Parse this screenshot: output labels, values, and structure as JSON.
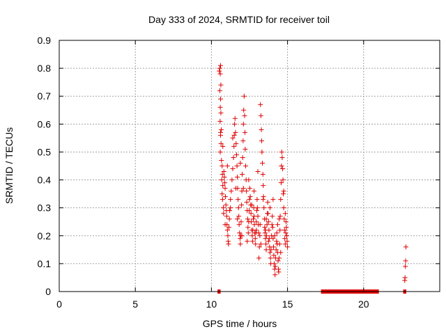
{
  "chart_data": {
    "type": "scatter",
    "title": "Day 333 of 2024, SRMTID for receiver toil",
    "xlabel": "GPS time / hours",
    "ylabel": "SRMTID / TECUs",
    "xlim": [
      0,
      25
    ],
    "ylim": [
      0,
      0.9
    ],
    "xticks": [
      0,
      5,
      10,
      15,
      20
    ],
    "yticks": [
      0,
      0.1,
      0.2,
      0.3,
      0.4,
      0.5,
      0.6,
      0.7,
      0.8,
      0.9
    ],
    "grid": true,
    "legend": "none",
    "marker": "+",
    "color": "#e00000",
    "series": [
      {
        "points": [
          [
            10.52,
            0.79
          ],
          [
            10.55,
            0.8
          ],
          [
            10.58,
            0.78
          ],
          [
            10.6,
            0.81
          ],
          [
            10.62,
            0.74
          ],
          [
            10.55,
            0.72
          ],
          [
            10.6,
            0.69
          ],
          [
            10.58,
            0.66
          ],
          [
            10.62,
            0.64
          ],
          [
            10.57,
            0.61
          ],
          [
            10.65,
            0.58
          ],
          [
            10.6,
            0.56
          ],
          [
            10.63,
            0.53
          ],
          [
            10.58,
            0.5
          ],
          [
            10.66,
            0.47
          ],
          [
            10.7,
            0.45
          ],
          [
            10.72,
            0.42
          ],
          [
            10.68,
            0.4
          ],
          [
            10.75,
            0.38
          ],
          [
            10.7,
            0.35
          ],
          [
            10.73,
            0.33
          ],
          [
            10.78,
            0.3
          ],
          [
            10.8,
            0.28
          ],
          [
            10.82,
            0.43
          ],
          [
            10.85,
            0.41
          ],
          [
            10.88,
            0.39
          ],
          [
            10.9,
            0.37
          ],
          [
            10.92,
            0.34
          ],
          [
            10.95,
            0.31
          ],
          [
            10.98,
            0.29
          ],
          [
            11.0,
            0.27
          ],
          [
            11.02,
            0.24
          ],
          [
            11.05,
            0.22
          ],
          [
            11.08,
            0.2
          ],
          [
            11.1,
            0.18
          ],
          [
            11.12,
            0.17
          ],
          [
            11.15,
            0.23
          ],
          [
            11.18,
            0.26
          ],
          [
            11.2,
            0.29
          ],
          [
            11.25,
            0.33
          ],
          [
            11.3,
            0.36
          ],
          [
            11.35,
            0.4
          ],
          [
            11.4,
            0.44
          ],
          [
            11.45,
            0.48
          ],
          [
            11.48,
            0.52
          ],
          [
            11.5,
            0.56
          ],
          [
            11.52,
            0.6
          ],
          [
            11.55,
            0.62
          ],
          [
            11.58,
            0.57
          ],
          [
            11.62,
            0.53
          ],
          [
            11.65,
            0.49
          ],
          [
            11.68,
            0.45
          ],
          [
            11.7,
            0.41
          ],
          [
            11.72,
            0.37
          ],
          [
            11.75,
            0.33
          ],
          [
            11.78,
            0.3
          ],
          [
            11.8,
            0.27
          ],
          [
            11.82,
            0.24
          ],
          [
            11.85,
            0.21
          ],
          [
            11.88,
            0.19
          ],
          [
            11.9,
            0.17
          ],
          [
            11.92,
            0.2
          ],
          [
            11.95,
            0.25
          ],
          [
            11.98,
            0.31
          ],
          [
            12.0,
            0.36
          ],
          [
            12.02,
            0.42
          ],
          [
            12.05,
            0.48
          ],
          [
            12.08,
            0.54
          ],
          [
            12.1,
            0.6
          ],
          [
            12.12,
            0.65
          ],
          [
            12.15,
            0.7
          ],
          [
            12.18,
            0.63
          ],
          [
            12.2,
            0.57
          ],
          [
            12.22,
            0.51
          ],
          [
            12.25,
            0.45
          ],
          [
            12.28,
            0.4
          ],
          [
            12.3,
            0.36
          ],
          [
            12.32,
            0.32
          ],
          [
            12.35,
            0.29
          ],
          [
            12.38,
            0.26
          ],
          [
            12.4,
            0.23
          ],
          [
            12.42,
            0.21
          ],
          [
            12.45,
            0.25
          ],
          [
            12.48,
            0.29
          ],
          [
            12.5,
            0.33
          ],
          [
            12.52,
            0.37
          ],
          [
            12.55,
            0.34
          ],
          [
            12.58,
            0.31
          ],
          [
            12.6,
            0.28
          ],
          [
            12.62,
            0.25
          ],
          [
            12.65,
            0.22
          ],
          [
            12.68,
            0.2
          ],
          [
            12.7,
            0.18
          ],
          [
            12.72,
            0.22
          ],
          [
            12.75,
            0.26
          ],
          [
            12.78,
            0.3
          ],
          [
            12.8,
            0.27
          ],
          [
            12.82,
            0.24
          ],
          [
            12.85,
            0.21
          ],
          [
            12.88,
            0.19
          ],
          [
            12.9,
            0.17
          ],
          [
            12.92,
            0.21
          ],
          [
            12.95,
            0.25
          ],
          [
            12.98,
            0.29
          ],
          [
            13.0,
            0.33
          ],
          [
            13.02,
            0.3
          ],
          [
            13.05,
            0.27
          ],
          [
            13.08,
            0.24
          ],
          [
            13.1,
            0.21
          ],
          [
            13.12,
            0.12
          ],
          [
            13.15,
            0.16
          ],
          [
            13.18,
            0.2
          ],
          [
            13.2,
            0.24
          ],
          [
            13.22,
            0.67
          ],
          [
            13.25,
            0.63
          ],
          [
            13.28,
            0.58
          ],
          [
            13.3,
            0.54
          ],
          [
            13.32,
            0.5
          ],
          [
            13.35,
            0.46
          ],
          [
            13.38,
            0.42
          ],
          [
            13.4,
            0.38
          ],
          [
            13.42,
            0.34
          ],
          [
            13.45,
            0.3
          ],
          [
            13.48,
            0.26
          ],
          [
            13.5,
            0.23
          ],
          [
            13.52,
            0.21
          ],
          [
            13.55,
            0.19
          ],
          [
            13.58,
            0.17
          ],
          [
            13.6,
            0.15
          ],
          [
            13.62,
            0.2
          ],
          [
            13.65,
            0.24
          ],
          [
            13.68,
            0.28
          ],
          [
            13.7,
            0.32
          ],
          [
            13.72,
            0.28
          ],
          [
            13.75,
            0.25
          ],
          [
            13.78,
            0.22
          ],
          [
            13.8,
            0.19
          ],
          [
            13.82,
            0.16
          ],
          [
            13.85,
            0.14
          ],
          [
            13.88,
            0.12
          ],
          [
            13.9,
            0.1
          ],
          [
            13.92,
            0.15
          ],
          [
            13.95,
            0.2
          ],
          [
            13.98,
            0.24
          ],
          [
            14.0,
            0.27
          ],
          [
            14.02,
            0.23
          ],
          [
            14.05,
            0.19
          ],
          [
            14.08,
            0.16
          ],
          [
            14.1,
            0.13
          ],
          [
            14.12,
            0.1
          ],
          [
            14.15,
            0.08
          ],
          [
            14.18,
            0.06
          ],
          [
            14.2,
            0.09
          ],
          [
            14.22,
            0.12
          ],
          [
            14.25,
            0.15
          ],
          [
            14.28,
            0.18
          ],
          [
            14.3,
            0.21
          ],
          [
            14.32,
            0.17
          ],
          [
            14.35,
            0.14
          ],
          [
            14.38,
            0.11
          ],
          [
            14.4,
            0.08
          ],
          [
            14.42,
            0.07
          ],
          [
            14.45,
            0.12
          ],
          [
            14.48,
            0.17
          ],
          [
            14.5,
            0.22
          ],
          [
            14.52,
            0.27
          ],
          [
            14.55,
            0.33
          ],
          [
            14.58,
            0.39
          ],
          [
            14.6,
            0.45
          ],
          [
            14.62,
            0.5
          ],
          [
            14.65,
            0.48
          ],
          [
            14.68,
            0.44
          ],
          [
            14.7,
            0.4
          ],
          [
            14.72,
            0.35
          ],
          [
            14.75,
            0.3
          ],
          [
            14.78,
            0.26
          ],
          [
            14.8,
            0.22
          ],
          [
            14.82,
            0.19
          ],
          [
            14.85,
            0.17
          ],
          [
            14.88,
            0.21
          ],
          [
            14.9,
            0.25
          ],
          [
            14.92,
            0.23
          ],
          [
            14.95,
            0.2
          ],
          [
            14.97,
            0.18
          ],
          [
            15.0,
            0.16
          ],
          [
            10.6,
            0.57
          ],
          [
            10.75,
            0.52
          ],
          [
            11.05,
            0.45
          ],
          [
            11.4,
            0.55
          ],
          [
            11.6,
            0.37
          ],
          [
            11.9,
            0.46
          ],
          [
            12.1,
            0.37
          ],
          [
            12.45,
            0.4
          ],
          [
            12.8,
            0.36
          ],
          [
            13.05,
            0.43
          ],
          [
            13.4,
            0.33
          ],
          [
            13.6,
            0.26
          ],
          [
            13.85,
            0.3
          ],
          [
            14.05,
            0.33
          ],
          [
            14.35,
            0.24
          ],
          [
            14.55,
            0.14
          ],
          [
            14.75,
            0.36
          ],
          [
            10.9,
            0.24
          ],
          [
            11.25,
            0.3
          ],
          [
            11.7,
            0.26
          ],
          [
            12.0,
            0.2
          ],
          [
            12.35,
            0.18
          ],
          [
            12.65,
            0.31
          ],
          [
            12.95,
            0.22
          ],
          [
            13.25,
            0.17
          ],
          [
            13.55,
            0.22
          ],
          [
            13.75,
            0.18
          ],
          [
            14.15,
            0.2
          ],
          [
            14.45,
            0.26
          ],
          [
            14.85,
            0.28
          ],
          [
            22.7,
            0.04
          ],
          [
            22.72,
            0.05
          ],
          [
            22.74,
            0.09
          ],
          [
            22.76,
            0.11
          ],
          [
            22.78,
            0.16
          ]
        ]
      }
    ],
    "zero_band": [
      [
        10.4,
        10.6
      ],
      [
        17.2,
        21.0
      ],
      [
        22.6,
        22.8
      ]
    ]
  }
}
